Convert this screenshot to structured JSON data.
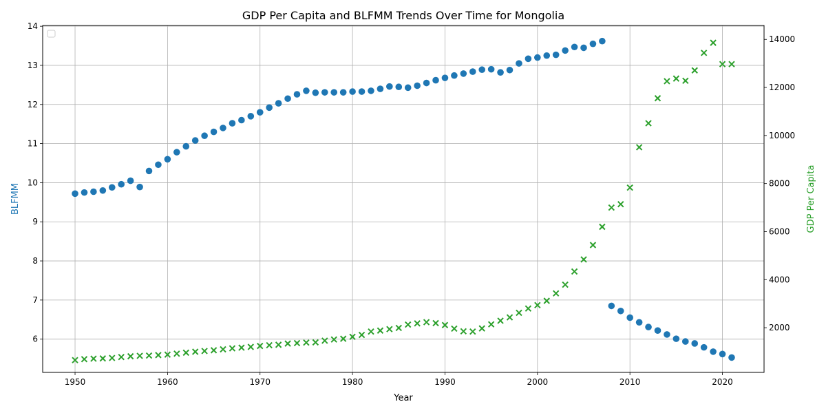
{
  "chart_data": {
    "type": "scatter",
    "title": "GDP Per Capita and BLFMM Trends Over Time for Mongolia",
    "xlabel": "Year",
    "ylabel_left": "BLFMM",
    "ylabel_right": "GDP Per Capita",
    "xlim": [
      1946.5,
      2024.5
    ],
    "ylim_left": [
      5.15,
      14.02
    ],
    "ylim_right": [
      140,
      14580
    ],
    "x_ticks": [
      1950,
      1960,
      1970,
      1980,
      1990,
      2000,
      2010,
      2020
    ],
    "y_ticks_left": [
      6,
      7,
      8,
      9,
      10,
      11,
      12,
      13,
      14
    ],
    "y_ticks_right": [
      2000,
      4000,
      6000,
      8000,
      10000,
      12000,
      14000
    ],
    "grid": true,
    "legend": "top-left (empty)",
    "colors": {
      "blfmm": "#1f77b4",
      "gdp": "#2ca02c"
    },
    "x": [
      1950,
      1951,
      1952,
      1953,
      1954,
      1955,
      1956,
      1957,
      1958,
      1959,
      1960,
      1961,
      1962,
      1963,
      1964,
      1965,
      1966,
      1967,
      1968,
      1969,
      1970,
      1971,
      1972,
      1973,
      1974,
      1975,
      1976,
      1977,
      1978,
      1979,
      1980,
      1981,
      1982,
      1983,
      1984,
      1985,
      1986,
      1987,
      1988,
      1989,
      1990,
      1991,
      1992,
      1993,
      1994,
      1995,
      1996,
      1997,
      1998,
      1999,
      2000,
      2001,
      2002,
      2003,
      2004,
      2005,
      2006,
      2007,
      2008,
      2009,
      2010,
      2011,
      2012,
      2013,
      2014,
      2015,
      2016,
      2017,
      2018,
      2019,
      2020,
      2021
    ],
    "series": [
      {
        "name": "BLFMM",
        "axis": "left",
        "marker": "circle",
        "values": [
          9.72,
          9.75,
          9.77,
          9.8,
          9.88,
          9.96,
          10.05,
          9.89,
          10.3,
          10.46,
          10.6,
          10.78,
          10.93,
          11.08,
          11.2,
          11.3,
          11.4,
          11.52,
          11.6,
          11.7,
          11.8,
          11.92,
          12.03,
          12.15,
          12.26,
          12.35,
          12.3,
          12.31,
          12.31,
          12.31,
          12.33,
          12.33,
          12.35,
          12.4,
          12.46,
          12.45,
          12.43,
          12.48,
          12.55,
          12.62,
          12.68,
          12.74,
          12.79,
          12.84,
          12.89,
          12.9,
          12.82,
          12.88,
          13.05,
          13.17,
          13.2,
          13.25,
          13.27,
          13.38,
          13.47,
          13.45,
          13.55,
          13.62,
          6.85,
          6.72,
          6.55,
          6.43,
          6.31,
          6.22,
          6.12,
          6.01,
          5.94,
          5.89,
          5.79,
          5.68,
          5.62,
          5.53
        ]
      },
      {
        "name": "GDP Per Capita",
        "axis": "right",
        "marker": "x",
        "values": [
          650,
          690,
          710,
          720,
          740,
          780,
          810,
          830,
          840,
          860,
          880,
          920,
          960,
          1000,
          1030,
          1060,
          1100,
          1140,
          1170,
          1200,
          1240,
          1270,
          1290,
          1340,
          1360,
          1380,
          1390,
          1460,
          1510,
          1540,
          1620,
          1700,
          1840,
          1880,
          1940,
          1990,
          2130,
          2180,
          2230,
          2190,
          2110,
          1960,
          1850,
          1840,
          1970,
          2140,
          2290,
          2430,
          2620,
          2800,
          2940,
          3120,
          3430,
          3790,
          4340,
          4840,
          5440,
          6200,
          7000,
          7140,
          7830,
          9510,
          10510,
          11550,
          12260,
          12370,
          12280,
          12710,
          13440,
          13860,
          12970,
          12970
        ]
      }
    ]
  }
}
